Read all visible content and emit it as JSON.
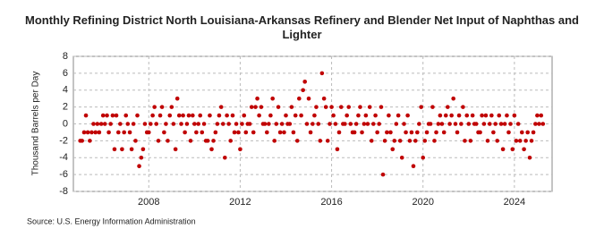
{
  "chart_data": {
    "type": "scatter",
    "title": "Monthly Refining District North Louisiana-Arkansas Refinery and Blender Net Input of Naphthas and Lighter",
    "y_label": "Thousand Barrels per Day",
    "source": "Source: U.S. Energy Information Administration",
    "xlim": [
      2004.7,
      2025.65
    ],
    "xticks": [
      2008,
      2012,
      2016,
      2020,
      2024
    ],
    "ylim": [
      -8,
      8
    ],
    "yticks": [
      -8,
      -6,
      -4,
      -2,
      0,
      2,
      4,
      6,
      8
    ],
    "grid": true,
    "series": [
      {
        "color": "#c00000",
        "x": [
          2005,
          2005.08,
          2005.17,
          2005.25,
          2005.33,
          2005.42,
          2005.5,
          2005.58,
          2005.67,
          2005.75,
          2005.83,
          2005.92,
          2006,
          2006.08,
          2006.17,
          2006.25,
          2006.33,
          2006.42,
          2006.5,
          2006.58,
          2006.67,
          2006.75,
          2006.83,
          2006.92,
          2007,
          2007.08,
          2007.17,
          2007.25,
          2007.33,
          2007.42,
          2007.5,
          2007.58,
          2007.67,
          2007.75,
          2007.83,
          2007.92,
          2008,
          2008.08,
          2008.17,
          2008.25,
          2008.33,
          2008.42,
          2008.5,
          2008.58,
          2008.67,
          2008.75,
          2008.83,
          2008.92,
          2009,
          2009.08,
          2009.17,
          2009.25,
          2009.33,
          2009.42,
          2009.5,
          2009.58,
          2009.67,
          2009.75,
          2009.83,
          2009.92,
          2010,
          2010.08,
          2010.17,
          2010.25,
          2010.33,
          2010.42,
          2010.5,
          2010.58,
          2010.67,
          2010.75,
          2010.83,
          2010.92,
          2011,
          2011.08,
          2011.17,
          2011.25,
          2011.33,
          2011.42,
          2011.5,
          2011.58,
          2011.67,
          2011.75,
          2011.83,
          2011.92,
          2012,
          2012.08,
          2012.17,
          2012.25,
          2012.33,
          2012.42,
          2012.5,
          2012.58,
          2012.67,
          2012.75,
          2012.83,
          2012.92,
          2013,
          2013.08,
          2013.17,
          2013.25,
          2013.33,
          2013.42,
          2013.5,
          2013.58,
          2013.67,
          2013.75,
          2013.83,
          2013.92,
          2014,
          2014.08,
          2014.17,
          2014.25,
          2014.33,
          2014.42,
          2014.5,
          2014.58,
          2014.67,
          2014.75,
          2014.83,
          2014.92,
          2015,
          2015.08,
          2015.17,
          2015.25,
          2015.33,
          2015.42,
          2015.5,
          2015.58,
          2015.67,
          2015.75,
          2015.83,
          2015.92,
          2016,
          2016.08,
          2016.17,
          2016.25,
          2016.33,
          2016.42,
          2016.5,
          2016.58,
          2016.67,
          2016.75,
          2016.83,
          2016.92,
          2017,
          2017.08,
          2017.17,
          2017.25,
          2017.33,
          2017.42,
          2017.5,
          2017.58,
          2017.67,
          2017.75,
          2017.83,
          2017.92,
          2018,
          2018.08,
          2018.17,
          2018.25,
          2018.33,
          2018.42,
          2018.5,
          2018.58,
          2018.67,
          2018.75,
          2018.83,
          2018.92,
          2019,
          2019.08,
          2019.17,
          2019.25,
          2019.33,
          2019.42,
          2019.5,
          2019.58,
          2019.67,
          2019.75,
          2019.83,
          2019.92,
          2020,
          2020.08,
          2020.17,
          2020.25,
          2020.33,
          2020.42,
          2020.5,
          2020.58,
          2020.67,
          2020.75,
          2020.83,
          2020.92,
          2021,
          2021.08,
          2021.17,
          2021.25,
          2021.33,
          2021.42,
          2021.5,
          2021.58,
          2021.67,
          2021.75,
          2021.83,
          2021.92,
          2022,
          2022.08,
          2022.17,
          2022.25,
          2022.33,
          2022.42,
          2022.5,
          2022.58,
          2022.67,
          2022.75,
          2022.83,
          2022.92,
          2023,
          2023.08,
          2023.17,
          2023.25,
          2023.33,
          2023.42,
          2023.5,
          2023.58,
          2023.67,
          2023.75,
          2023.83,
          2023.92,
          2024,
          2024.08,
          2024.17,
          2024.25,
          2024.33,
          2024.42,
          2024.5,
          2024.58,
          2024.67,
          2024.75,
          2024.83,
          2024.92,
          2025,
          2025.08,
          2025.17,
          2025.25
        ],
        "values": [
          -2,
          -2,
          -1,
          1,
          -1,
          -2,
          -1,
          0,
          -1,
          0,
          -1,
          0,
          1,
          0,
          1,
          -1,
          0,
          1,
          -3,
          1,
          -1,
          0,
          -3,
          -1,
          1,
          0,
          -1,
          -3,
          0,
          -2,
          1,
          -5,
          -4,
          -3,
          0,
          -1,
          -1,
          0,
          1,
          2,
          0,
          -2,
          1,
          2,
          -1,
          0,
          -2,
          1,
          2,
          0,
          -3,
          3,
          1,
          0,
          1,
          -1,
          0,
          1,
          -2,
          1,
          0,
          -1,
          0,
          1,
          -1,
          0,
          -2,
          -2,
          1,
          -3,
          -2,
          -1,
          0,
          1,
          2,
          0,
          -4,
          1,
          0,
          -2,
          1,
          -1,
          0,
          -1,
          -3,
          0,
          1,
          -1,
          0,
          0,
          2,
          -1,
          2,
          3,
          1,
          2,
          0,
          0,
          -1,
          0,
          1,
          3,
          -2,
          0,
          2,
          -1,
          0,
          -1,
          1,
          0,
          0,
          2,
          -1,
          1,
          -2,
          3,
          1,
          4,
          5,
          0,
          3,
          -1,
          0,
          1,
          2,
          0,
          -2,
          6,
          3,
          2,
          -2,
          0,
          2,
          1,
          0,
          -3,
          -1,
          2,
          0,
          0,
          1,
          2,
          0,
          -1,
          -1,
          0,
          1,
          2,
          -1,
          0,
          1,
          0,
          2,
          -2,
          0,
          1,
          -1,
          0,
          2,
          -6,
          -2,
          -1,
          1,
          -1,
          -3,
          -2,
          0,
          1,
          -2,
          -4,
          0,
          -1,
          1,
          -2,
          -1,
          -5,
          -2,
          -1,
          0,
          2,
          -4,
          -2,
          -1,
          0,
          0,
          2,
          -2,
          -1,
          0,
          1,
          0,
          -1,
          1,
          2,
          0,
          1,
          3,
          0,
          -1,
          1,
          0,
          2,
          -2,
          1,
          0,
          -2,
          1,
          0,
          0,
          -1,
          -1,
          1,
          0,
          1,
          -2,
          0,
          1,
          -1,
          0,
          -2,
          1,
          0,
          -3,
          0,
          1,
          -1,
          0,
          -3,
          1,
          -2,
          0,
          -2,
          -1,
          -3,
          -2,
          -1,
          -4,
          -2,
          -1,
          0,
          1,
          0,
          1,
          0
        ]
      }
    ]
  }
}
